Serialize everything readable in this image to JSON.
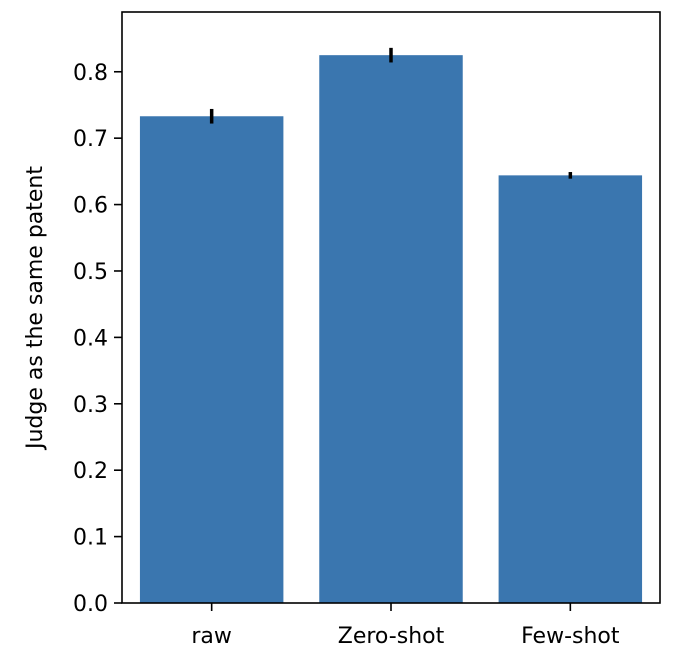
{
  "chart_data": {
    "type": "bar",
    "title": "",
    "xlabel": "",
    "ylabel": "Judge as the same patent",
    "categories": [
      "raw",
      "Zero-shot",
      "Few-shot"
    ],
    "values": [
      0.733,
      0.825,
      0.644
    ],
    "errors": [
      0.011,
      0.011,
      0.005
    ],
    "ylim": [
      0,
      0.89
    ],
    "yticks": [
      0.0,
      0.1,
      0.2,
      0.3,
      0.4,
      0.5,
      0.6,
      0.7,
      0.8
    ],
    "ytick_labels": [
      "0.0",
      "0.1",
      "0.2",
      "0.3",
      "0.4",
      "0.5",
      "0.6",
      "0.7",
      "0.8"
    ],
    "grid": false,
    "bar_color": "#3a76af",
    "error_color": "#000000"
  }
}
